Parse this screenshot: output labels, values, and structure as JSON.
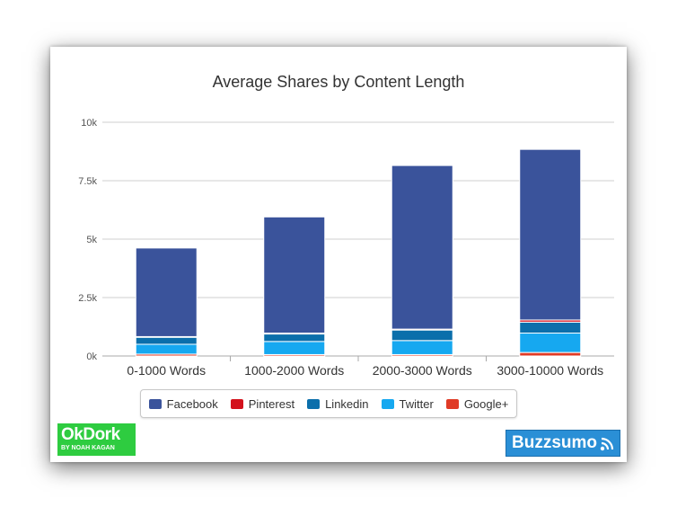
{
  "chart_data": {
    "type": "bar",
    "stacked": true,
    "title": "Average Shares by Content Length",
    "categories": [
      "0-1000 Words",
      "1000-2000 Words",
      "2000-3000 Words",
      "3000-10000 Words"
    ],
    "series": [
      {
        "name": "Google+",
        "color": "#e03b26",
        "values": [
          80,
          60,
          60,
          150
        ]
      },
      {
        "name": "Twitter",
        "color": "#16a8f0",
        "values": [
          420,
          560,
          600,
          830
        ]
      },
      {
        "name": "Linkedin",
        "color": "#0b6fab",
        "values": [
          300,
          320,
          450,
          470
        ]
      },
      {
        "name": "Pinterest",
        "color": "#d3111c",
        "values": [
          30,
          40,
          40,
          90
        ]
      },
      {
        "name": "Facebook",
        "color": "#3a539b",
        "values": [
          3790,
          4970,
          7000,
          7300
        ]
      }
    ],
    "legend_order": [
      "Facebook",
      "Pinterest",
      "Linkedin",
      "Twitter",
      "Google+"
    ],
    "ylim": [
      0,
      10000
    ],
    "yticks": [
      0,
      2500,
      5000,
      7500,
      10000
    ],
    "ytick_labels": [
      "0k",
      "2.5k",
      "5k",
      "7.5k",
      "10k"
    ],
    "grid": true,
    "legend_position": "bottom"
  },
  "logos": {
    "okdork_main": "OkDork",
    "okdork_sub": "BY NOAH KAGAN",
    "buzzsumo": "Buzzsumo"
  }
}
